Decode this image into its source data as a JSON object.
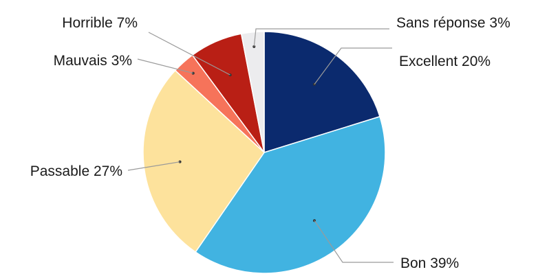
{
  "chart_data": {
    "type": "pie",
    "title": "",
    "start_angle_deg": 0,
    "direction": "clockwise",
    "slices": [
      {
        "label": "Excellent",
        "value": 20,
        "pct_text": "20%",
        "color": "#0b2a6e"
      },
      {
        "label": "Bon",
        "value": 39,
        "pct_text": "39%",
        "color": "#41b3e1"
      },
      {
        "label": "Passable",
        "value": 27,
        "pct_text": "27%",
        "color": "#fde29c"
      },
      {
        "label": "Mauvais",
        "value": 3,
        "pct_text": "3%",
        "color": "#f6735a"
      },
      {
        "label": "Horrible",
        "value": 7,
        "pct_text": "7%",
        "color": "#b91f15"
      },
      {
        "label": "Sans réponse",
        "value": 3,
        "pct_text": "3%",
        "color": "#ececee"
      }
    ]
  }
}
